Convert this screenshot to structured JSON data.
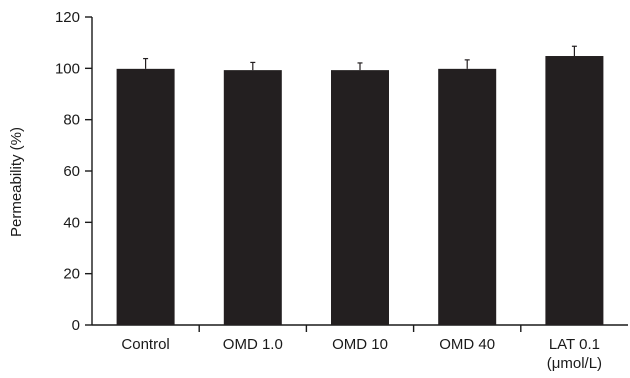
{
  "chart_data": {
    "type": "bar",
    "title": "",
    "xlabel": "",
    "ylabel": "Permeability (%)",
    "ylim": [
      0,
      120
    ],
    "yticks": [
      0,
      20,
      40,
      60,
      80,
      100,
      120
    ],
    "categories": [
      [
        "Control"
      ],
      [
        "OMD 1.0"
      ],
      [
        "OMD 10"
      ],
      [
        "OMD 40"
      ],
      [
        "LAT 0.1",
        "(μmol/L)"
      ]
    ],
    "values": [
      99.8,
      99.3,
      99.3,
      99.8,
      104.8
    ],
    "errors": [
      4.0,
      3.0,
      2.8,
      3.5,
      3.8
    ],
    "grid": false,
    "colors": {
      "bar": "#231f20",
      "axis": "#1a1a1a"
    }
  }
}
